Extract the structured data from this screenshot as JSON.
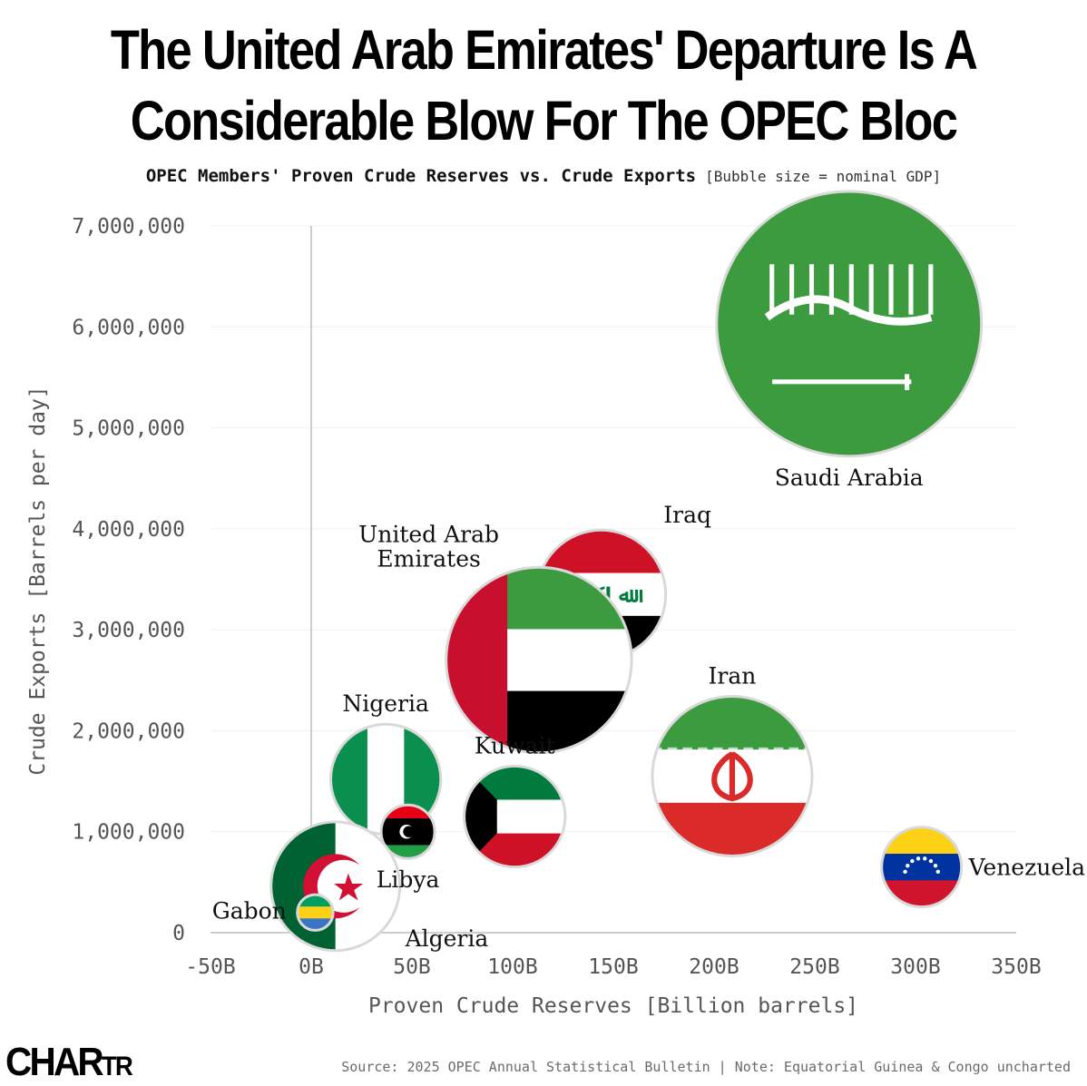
{
  "header": {
    "title_line1": "The United Arab Emirates' Departure Is A",
    "title_line2": "Considerable Blow For The OPEC Bloc",
    "subtitle": "OPEC Members' Proven Crude Reserves vs. Crude Exports",
    "subtitle_note": "[Bubble size = nominal GDP]"
  },
  "footer": {
    "logo_main": "CHAR",
    "logo_small": "TR",
    "source": "Source: 2025 OPEC Annual Statistical Bulletin | Note: Equatorial Guinea & Congo uncharted"
  },
  "chart_data": {
    "type": "scatter",
    "xlabel": "Proven Crude Reserves [Billion barrels]",
    "ylabel": "Crude Exports [Barrels per day]",
    "xlim": [
      -50,
      350
    ],
    "ylim": [
      0,
      7000000
    ],
    "x_ticks": [
      -50,
      0,
      50,
      100,
      150,
      200,
      250,
      300,
      350
    ],
    "x_tick_labels": [
      "-50B",
      "0B",
      "50B",
      "100B",
      "150B",
      "200B",
      "250B",
      "300B",
      "350B"
    ],
    "y_ticks": [
      0,
      1000000,
      2000000,
      3000000,
      4000000,
      5000000,
      6000000,
      7000000
    ],
    "y_tick_labels": [
      "0",
      "1,000,000",
      "2,000,000",
      "3,000,000",
      "4,000,000",
      "5,000,000",
      "6,000,000",
      "7,000,000"
    ],
    "grid": "horizontal",
    "points": [
      {
        "label": "Saudi Arabia",
        "x": 267,
        "y": 6030000,
        "gdp": 1100,
        "flag": "saudi-arabia-flag",
        "label_pos": "below"
      },
      {
        "label": "Iraq",
        "x": 144,
        "y": 3350000,
        "gdp": 260,
        "flag": "iraq-flag",
        "label_pos": "upper-right"
      },
      {
        "label": "United Arab Emirates",
        "x": 113,
        "y": 2700000,
        "gdp": 540,
        "flag": "uae-flag",
        "label_pos": "upper-left"
      },
      {
        "label": "Iran",
        "x": 209,
        "y": 1550000,
        "gdp": 400,
        "flag": "iran-flag",
        "label_pos": "above"
      },
      {
        "label": "Nigeria",
        "x": 37,
        "y": 1520000,
        "gdp": 190,
        "flag": "nigeria-flag",
        "label_pos": "above"
      },
      {
        "label": "Kuwait",
        "x": 101,
        "y": 1150000,
        "gdp": 160,
        "flag": "kuwait-flag",
        "label_pos": "above"
      },
      {
        "label": "Libya",
        "x": 48,
        "y": 1000000,
        "gdp": 45,
        "flag": "libya-flag",
        "label_pos": "below"
      },
      {
        "label": "Venezuela",
        "x": 303,
        "y": 650000,
        "gdp": 100,
        "flag": "venezuela-flag",
        "label_pos": "right"
      },
      {
        "label": "Algeria",
        "x": 12,
        "y": 460000,
        "gdp": 260,
        "flag": "algeria-flag",
        "label_pos": "lower-right"
      },
      {
        "label": "Gabon",
        "x": 2,
        "y": 200000,
        "gdp": 20,
        "flag": "gabon-flag",
        "label_pos": "left"
      }
    ]
  },
  "colors": {
    "axis": "#bdbdbd",
    "grid": "#f0f0f0",
    "tick_text": "#555555",
    "bubble_ring": "#d9d9d9",
    "label_text": "#111111"
  }
}
